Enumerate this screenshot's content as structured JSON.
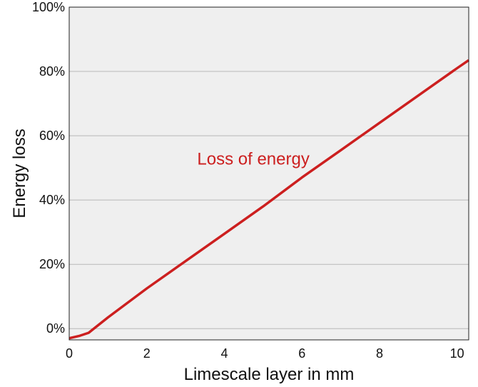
{
  "chart_data": {
    "type": "line",
    "title": "",
    "xlabel": "Limescale layer in mm",
    "ylabel": "Energy loss",
    "xlim": [
      0,
      10.3
    ],
    "ylim": [
      -3.5,
      100
    ],
    "x_ticks": [
      0,
      2,
      4,
      6,
      8,
      10
    ],
    "y_ticks": [
      0,
      20,
      40,
      60,
      80,
      100
    ],
    "y_tick_labels": [
      "0%",
      "20%",
      "40%",
      "60%",
      "80%",
      "100%"
    ],
    "grid": "horizontal",
    "series": [
      {
        "name": "Loss of energy",
        "color": "#cc1f1f",
        "x": [
          0,
          0.25,
          0.5,
          1,
          2,
          3,
          4,
          5,
          6,
          7,
          8,
          9,
          10,
          10.3
        ],
        "y": [
          -3,
          -2.3,
          -1.3,
          3.5,
          12.5,
          21,
          29.5,
          38,
          47,
          55.5,
          64,
          72.5,
          81,
          83.5
        ]
      }
    ],
    "annotations": [
      {
        "text": "Loss of energy",
        "x": 3.3,
        "y": 51,
        "color": "#cc1f1f"
      }
    ],
    "plot_background": "#efefef"
  }
}
